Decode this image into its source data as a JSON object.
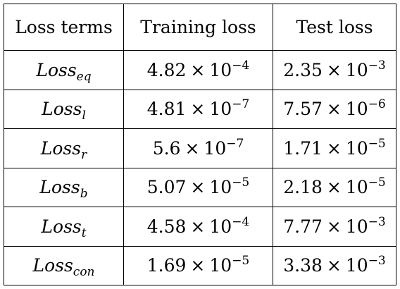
{
  "headers": [
    "Loss terms",
    "Training loss",
    "Test loss"
  ],
  "rows": [
    {
      "term_base": "Loss",
      "term_sub": "eq",
      "train_mantissa": "4.82",
      "train_exp": "−4",
      "test_mantissa": "2.35",
      "test_exp": "−3"
    },
    {
      "term_base": "Loss",
      "term_sub": "l",
      "train_mantissa": "4.81",
      "train_exp": "−7",
      "test_mantissa": "7.57",
      "test_exp": "−6"
    },
    {
      "term_base": "Loss",
      "term_sub": "r",
      "train_mantissa": "5.6",
      "train_exp": "−7",
      "test_mantissa": "1.71",
      "test_exp": "−5"
    },
    {
      "term_base": "Loss",
      "term_sub": "b",
      "train_mantissa": "5.07",
      "train_exp": "−5",
      "test_mantissa": "2.18",
      "test_exp": "−5"
    },
    {
      "term_base": "Loss",
      "term_sub": "t",
      "train_mantissa": "4.58",
      "train_exp": "−4",
      "test_mantissa": "7.77",
      "test_exp": "−3"
    },
    {
      "term_base": "Loss",
      "term_sub": "con",
      "train_mantissa": "1.69",
      "train_exp": "−5",
      "test_mantissa": "3.38",
      "test_exp": "−3"
    }
  ],
  "times_symbol": "×",
  "base": "10"
}
